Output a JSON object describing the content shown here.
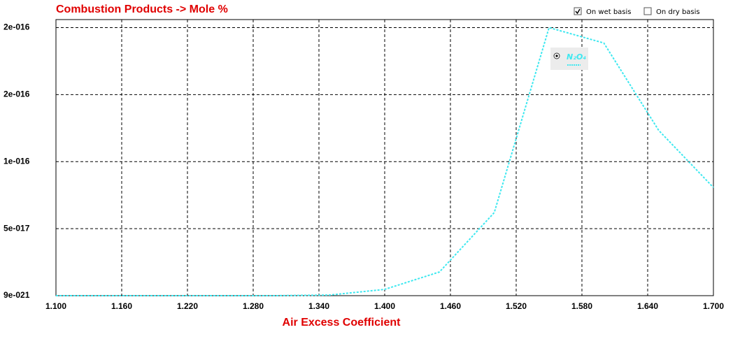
{
  "chart_data": {
    "type": "line",
    "title": "Combustion Products -> Mole %",
    "x_label": "Air Excess Coefficient",
    "x": [
      1.1,
      1.15,
      1.2,
      1.25,
      1.3,
      1.35,
      1.4,
      1.45,
      1.5,
      1.55,
      1.6,
      1.65,
      1.7
    ],
    "series": [
      {
        "name": "N₂O₄",
        "color": "#3ee8f0",
        "values": [
          1e-20,
          1e-20,
          1e-20,
          1e-20,
          1e-20,
          5e-19,
          4.7e-18,
          1.77e-17,
          6.2e-17,
          2e-16,
          1.885e-16,
          1.234e-16,
          8.07e-17
        ]
      }
    ],
    "xlim": [
      1.1,
      1.7
    ],
    "xticks": [
      {
        "value": 1.1,
        "label": "1.100"
      },
      {
        "value": 1.16,
        "label": "1.160"
      },
      {
        "value": 1.22,
        "label": "1.220"
      },
      {
        "value": 1.28,
        "label": "1.280"
      },
      {
        "value": 1.34,
        "label": "1.340"
      },
      {
        "value": 1.4,
        "label": "1.400"
      },
      {
        "value": 1.46,
        "label": "1.460"
      },
      {
        "value": 1.52,
        "label": "1.520"
      },
      {
        "value": 1.58,
        "label": "1.580"
      },
      {
        "value": 1.64,
        "label": "1.640"
      },
      {
        "value": 1.7,
        "label": "1.700"
      }
    ],
    "ylim": [
      9e-21,
      2.06e-16
    ],
    "yticks": [
      {
        "value": 9e-21,
        "label": "9e-021"
      },
      {
        "value": 5e-17,
        "label": "5e-017"
      },
      {
        "value": 1e-16,
        "label": "1e-016"
      },
      {
        "value": 1.5e-16,
        "label": "2e-016"
      },
      {
        "value": 2e-16,
        "label": "2e-016"
      }
    ],
    "grid": true,
    "controls": [
      {
        "label": "On wet basis",
        "checked": true
      },
      {
        "label": "On dry basis",
        "checked": false
      }
    ]
  }
}
